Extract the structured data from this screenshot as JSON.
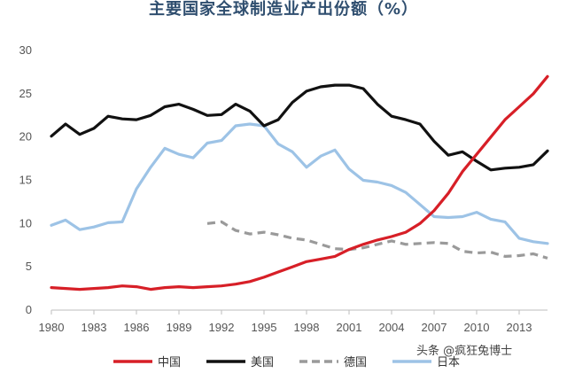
{
  "chart_data": {
    "type": "line",
    "title": "主要国家全球制造业产出份额（%）",
    "xlabel": "",
    "ylabel": "",
    "xlim": [
      1980,
      2015
    ],
    "ylim": [
      0,
      30
    ],
    "yticks": [
      0,
      5,
      10,
      15,
      20,
      25,
      30
    ],
    "xticks": [
      1980,
      1983,
      1986,
      1989,
      1992,
      1995,
      1998,
      2001,
      2004,
      2007,
      2010,
      2013
    ],
    "grid": false,
    "legend_position": "bottom",
    "series": [
      {
        "name": "中国",
        "color": "#d71f27",
        "style": "solid",
        "x": [
          1980,
          1981,
          1982,
          1983,
          1984,
          1985,
          1986,
          1987,
          1988,
          1989,
          1990,
          1991,
          1992,
          1993,
          1994,
          1995,
          1996,
          1997,
          1998,
          1999,
          2000,
          2001,
          2002,
          2003,
          2004,
          2005,
          2006,
          2007,
          2008,
          2009,
          2010,
          2011,
          2012,
          2013,
          2014,
          2015
        ],
        "y": [
          2.6,
          2.5,
          2.4,
          2.5,
          2.6,
          2.8,
          2.7,
          2.4,
          2.6,
          2.7,
          2.6,
          2.7,
          2.8,
          3.0,
          3.3,
          3.8,
          4.4,
          5.0,
          5.6,
          5.9,
          6.2,
          7.0,
          7.6,
          8.1,
          8.5,
          9.0,
          10.0,
          11.5,
          13.5,
          16.0,
          18.0,
          20.0,
          22.0,
          23.5,
          25.0,
          27.0
        ]
      },
      {
        "name": "美国",
        "color": "#111111",
        "style": "solid",
        "x": [
          1980,
          1981,
          1982,
          1983,
          1984,
          1985,
          1986,
          1987,
          1988,
          1989,
          1990,
          1991,
          1992,
          1993,
          1994,
          1995,
          1996,
          1997,
          1998,
          1999,
          2000,
          2001,
          2002,
          2003,
          2004,
          2005,
          2006,
          2007,
          2008,
          2009,
          2010,
          2011,
          2012,
          2013,
          2014,
          2015
        ],
        "y": [
          20.1,
          21.5,
          20.3,
          21.0,
          22.4,
          22.1,
          22.0,
          22.5,
          23.5,
          23.8,
          23.2,
          22.5,
          22.6,
          23.8,
          23.0,
          21.3,
          22.0,
          24.0,
          25.3,
          25.8,
          26.0,
          26.0,
          25.6,
          23.8,
          22.4,
          22.0,
          21.5,
          19.5,
          17.9,
          18.3,
          17.2,
          16.2,
          16.4,
          16.5,
          16.8,
          18.4
        ]
      },
      {
        "name": "德国",
        "color": "#9a9a9a",
        "style": "dashed",
        "x": [
          1991,
          1992,
          1993,
          1994,
          1995,
          1996,
          1997,
          1998,
          1999,
          2000,
          2001,
          2002,
          2003,
          2004,
          2005,
          2006,
          2007,
          2008,
          2009,
          2010,
          2011,
          2012,
          2013,
          2014,
          2015
        ],
        "y": [
          10.0,
          10.2,
          9.2,
          8.8,
          9.0,
          8.7,
          8.3,
          8.1,
          7.6,
          7.1,
          7.0,
          7.2,
          7.6,
          8.0,
          7.6,
          7.7,
          7.8,
          7.7,
          6.8,
          6.6,
          6.7,
          6.2,
          6.3,
          6.5,
          6.0
        ]
      },
      {
        "name": "日本",
        "color": "#9dc3e6",
        "style": "solid",
        "x": [
          1980,
          1981,
          1982,
          1983,
          1984,
          1985,
          1986,
          1987,
          1988,
          1989,
          1990,
          1991,
          1992,
          1993,
          1994,
          1995,
          1996,
          1997,
          1998,
          1999,
          2000,
          2001,
          2002,
          2003,
          2004,
          2005,
          2006,
          2007,
          2008,
          2009,
          2010,
          2011,
          2012,
          2013,
          2014,
          2015
        ],
        "y": [
          9.8,
          10.4,
          9.3,
          9.6,
          10.1,
          10.2,
          14.0,
          16.5,
          18.7,
          18.0,
          17.6,
          19.3,
          19.6,
          21.3,
          21.5,
          21.3,
          19.2,
          18.3,
          16.5,
          17.8,
          18.5,
          16.3,
          15.0,
          14.8,
          14.4,
          13.6,
          12.2,
          10.8,
          10.7,
          10.8,
          11.3,
          10.5,
          10.2,
          8.3,
          7.9,
          7.7
        ]
      }
    ]
  },
  "watermark": "头条 @疯狂兔博士"
}
